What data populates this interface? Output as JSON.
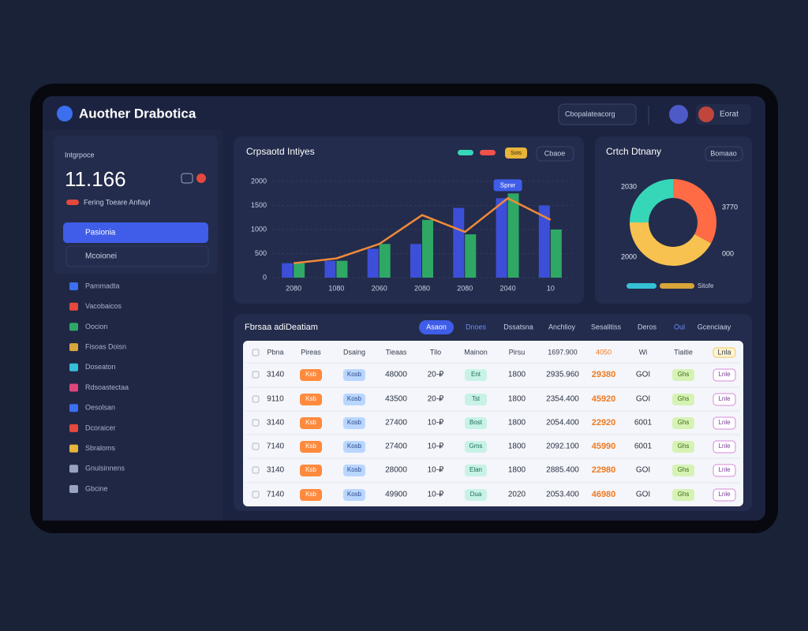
{
  "header": {
    "title": "Auother Drabotica",
    "search": "Cbopalateacorg",
    "user": "Eorat"
  },
  "sidebar": {
    "card_label": "Intgrpoce",
    "metric": "11.166",
    "card_note": "Fering Toeare Anfiayl",
    "active_item": "Pasionia",
    "second_item": "Mcoionei",
    "nav": [
      "Pammadta",
      "Vacobaicos",
      "Oocion",
      "Fisoas Doisn",
      "Doseaton",
      "Rdsoastectaa",
      "Oesolsan",
      "Dcoraicer",
      "Sbraloms",
      "Gnulsinnens",
      "Gbcine"
    ]
  },
  "chart_data": [
    {
      "type": "bar",
      "title": "Crpsaotd Intiyes",
      "badge": "Sots",
      "button": "Cbaoe",
      "categories": [
        "2080",
        "1080",
        "2060",
        "2080",
        "2080",
        "2040",
        "10"
      ],
      "series": [
        {
          "color": "#3d4fd8",
          "values": [
            300,
            350,
            600,
            700,
            1450,
            1650,
            1500
          ]
        },
        {
          "color": "#2fa866",
          "values": [
            300,
            350,
            700,
            1200,
            900,
            1750,
            1000
          ]
        },
        {
          "type": "line",
          "color": "#f08a3a",
          "values": [
            300,
            400,
            700,
            1300,
            950,
            1650,
            1200
          ]
        }
      ],
      "annotation": {
        "text": "Sprer",
        "index": 5
      },
      "ylim": [
        0,
        2000
      ],
      "yticks": [
        0,
        500,
        1000,
        1500,
        2000
      ],
      "grid": true
    },
    {
      "type": "pie",
      "title": "Crtch Dtnany",
      "button": "Bomaao",
      "values": [
        33,
        42,
        25
      ],
      "colors": [
        "#ff6b45",
        "#f7c24f",
        "#36d6b8"
      ],
      "annotations": [
        "2030",
        "3770",
        "2000",
        "000"
      ],
      "legend_text": "Sitofe"
    }
  ],
  "table": {
    "title": "Fbrsaa adiDeatiam",
    "tabs": [
      "Asaon",
      "Dnoes",
      "Dssatsna",
      "Anchlioy",
      "Sesalitiss",
      "Deros",
      "Oul",
      "Gcenciaay"
    ],
    "columns": [
      "Pbna",
      "Pireas",
      "Dsaing",
      "Tieaas",
      "Tilo",
      "Mainon",
      "Pirsu",
      "1697.900",
      "4050",
      "Wi",
      "Tiaitie",
      "Lnla"
    ],
    "rows": [
      [
        "3140",
        "Ksb",
        "Kosb",
        "48000",
        "20-₽",
        "Ent",
        "1800",
        "2935.960",
        "29380",
        "GOI",
        "Ghs",
        "Lnle"
      ],
      [
        "9110",
        "Ksb",
        "Kosb",
        "43500",
        "20-₽",
        "Tst",
        "1800",
        "2354.400",
        "45920",
        "GOI",
        "Ghs",
        "Lnle"
      ],
      [
        "3140",
        "Ksb",
        "Kosb",
        "27400",
        "10-₽",
        "Bost",
        "1800",
        "2054.400",
        "22920",
        "6001",
        "Ghs",
        "Lnle"
      ],
      [
        "7140",
        "Ksb",
        "Kosb",
        "27400",
        "10-₽",
        "Gms",
        "1800",
        "2092.100",
        "45990",
        "6001",
        "Ghs",
        "Lnle"
      ],
      [
        "3140",
        "Ksb",
        "Kosb",
        "28000",
        "10-₽",
        "Elan",
        "1800",
        "2885.400",
        "22980",
        "GOI",
        "Ghs",
        "Lnle"
      ],
      [
        "7140",
        "Ksb",
        "Kosb",
        "49900",
        "10-₽",
        "Dua",
        "2020",
        "2053.400",
        "46980",
        "GOI",
        "Ghs",
        "Lnle"
      ]
    ]
  }
}
